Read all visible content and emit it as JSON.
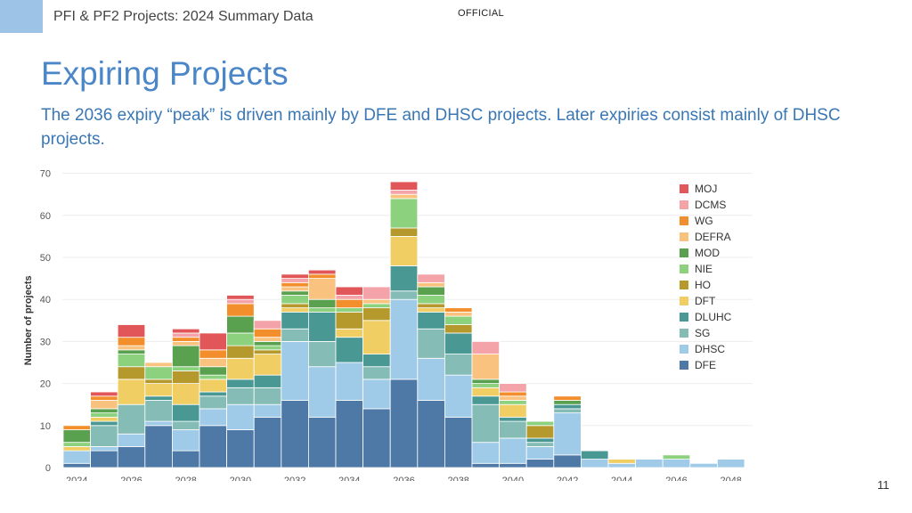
{
  "header": {
    "title": "PFI & PF2 Projects: 2024 Summary Data",
    "classification": "OFFICIAL"
  },
  "slide": {
    "title": "Expiring Projects",
    "subtitle": "The 2036 expiry “peak” is driven mainly by DFE and DHSC projects. Later expiries consist mainly of DHSC projects.",
    "page_number": "11"
  },
  "colors": {
    "MOJ": "#e15759",
    "DCMS": "#f4a3a8",
    "WG": "#f28e2b",
    "DEFRA": "#f9c27e",
    "MOD": "#59a14f",
    "NIE": "#8cd17d",
    "HO": "#b6992d",
    "DFT": "#f1ce63",
    "DLUHC": "#499894",
    "SG": "#86bcb6",
    "DHSC": "#a0cbe8",
    "DFE": "#4e79a7"
  },
  "chart_data": {
    "type": "bar",
    "stacked": true,
    "title": "",
    "xlabel": "",
    "ylabel": "Number of projects",
    "ylim": [
      0,
      70
    ],
    "yticks": [
      0,
      10,
      20,
      30,
      40,
      50,
      60,
      70
    ],
    "xtick_labels": [
      "2024",
      "2026",
      "2028",
      "2030",
      "2032",
      "2034",
      "2036",
      "2038",
      "2040",
      "2042",
      "2044",
      "2046",
      "2048"
    ],
    "categories": [
      "2024",
      "2025",
      "2026",
      "2027",
      "2028",
      "2029",
      "2030",
      "2031",
      "2032",
      "2033",
      "2034",
      "2035",
      "2036",
      "2037",
      "2038",
      "2039",
      "2040",
      "2041",
      "2042",
      "2043",
      "2044",
      "2045",
      "2046",
      "2047",
      "2048"
    ],
    "legend_position": "right",
    "series": [
      {
        "name": "DFE",
        "values": [
          1,
          4,
          5,
          10,
          4,
          10,
          9,
          12,
          16,
          12,
          16,
          14,
          21,
          16,
          12,
          1,
          1,
          2,
          3,
          0,
          0,
          0,
          0,
          0,
          0
        ]
      },
      {
        "name": "DHSC",
        "values": [
          3,
          1,
          3,
          1,
          5,
          4,
          6,
          3,
          14,
          12,
          9,
          7,
          19,
          10,
          10,
          5,
          6,
          3,
          10,
          2,
          1,
          2,
          2,
          1,
          2
        ]
      },
      {
        "name": "SG",
        "values": [
          0,
          5,
          7,
          5,
          2,
          3,
          4,
          4,
          3,
          6,
          0,
          3,
          2,
          7,
          5,
          9,
          4,
          1,
          1,
          0,
          0,
          0,
          0,
          0,
          0
        ]
      },
      {
        "name": "DLUHC",
        "values": [
          0,
          1,
          0,
          1,
          4,
          1,
          2,
          3,
          4,
          7,
          6,
          3,
          6,
          4,
          5,
          2,
          1,
          1,
          1,
          2,
          0,
          0,
          0,
          0,
          0
        ]
      },
      {
        "name": "DFT",
        "values": [
          1,
          1,
          6,
          3,
          5,
          3,
          5,
          5,
          1,
          0,
          2,
          8,
          7,
          1,
          0,
          2,
          3,
          0,
          0,
          0,
          1,
          0,
          0,
          0,
          0
        ]
      },
      {
        "name": "HO",
        "values": [
          0,
          0,
          3,
          1,
          3,
          0,
          3,
          1,
          1,
          0,
          4,
          3,
          2,
          1,
          2,
          0,
          0,
          3,
          0,
          0,
          0,
          0,
          0,
          0,
          0
        ]
      },
      {
        "name": "NIE",
        "values": [
          1,
          1,
          3,
          3,
          1,
          1,
          3,
          1,
          2,
          1,
          1,
          1,
          7,
          2,
          2,
          1,
          1,
          1,
          0,
          0,
          0,
          0,
          1,
          0,
          0
        ]
      },
      {
        "name": "MOD",
        "values": [
          3,
          1,
          1,
          0,
          5,
          2,
          4,
          1,
          1,
          2,
          0,
          0,
          0,
          2,
          0,
          1,
          0,
          0,
          1,
          0,
          0,
          0,
          0,
          0,
          0
        ]
      },
      {
        "name": "DEFRA",
        "values": [
          0,
          2,
          1,
          1,
          1,
          2,
          0,
          1,
          1,
          5,
          0,
          1,
          1,
          1,
          1,
          6,
          1,
          0,
          0,
          0,
          0,
          0,
          0,
          0,
          0
        ]
      },
      {
        "name": "WG",
        "values": [
          1,
          1,
          2,
          0,
          1,
          2,
          3,
          2,
          1,
          1,
          2,
          0,
          0,
          0,
          1,
          0,
          1,
          0,
          1,
          0,
          0,
          0,
          0,
          0,
          0
        ]
      },
      {
        "name": "DCMS",
        "values": [
          0,
          0,
          0,
          0,
          1,
          0,
          1,
          2,
          1,
          0,
          1,
          3,
          1,
          2,
          0,
          3,
          2,
          0,
          0,
          0,
          0,
          0,
          0,
          0,
          0
        ]
      },
      {
        "name": "MOJ",
        "values": [
          0,
          1,
          3,
          0,
          1,
          4,
          1,
          0,
          1,
          1,
          2,
          0,
          2,
          0,
          0,
          0,
          0,
          0,
          0,
          0,
          0,
          0,
          0,
          0,
          0
        ]
      }
    ]
  }
}
